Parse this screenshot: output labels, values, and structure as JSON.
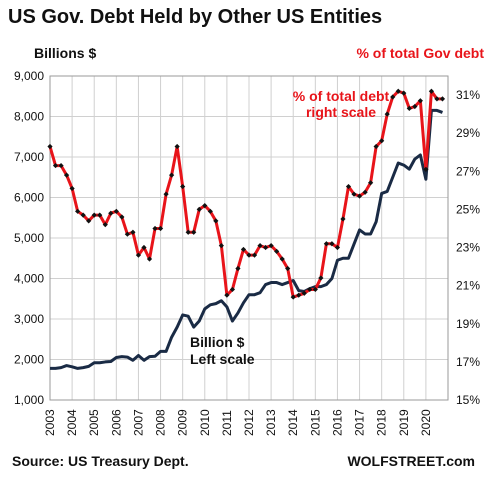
{
  "chart_data": {
    "type": "line",
    "title": "US Gov. Debt Held by Other US Entities",
    "ylabel_left": "Billions $",
    "ylabel_right": "% of total Gov debt",
    "ylim_left": [
      1000,
      9000
    ],
    "yticks_left": [
      "1,000",
      "2,000",
      "3,000",
      "4,000",
      "5,000",
      "6,000",
      "7,000",
      "8,000",
      "9,000"
    ],
    "ylim_right": [
      15,
      32
    ],
    "yticks_right": [
      "15%",
      "17%",
      "19%",
      "21%",
      "23%",
      "25%",
      "27%",
      "29%",
      "31%"
    ],
    "xlim": [
      2003.0,
      2021.0
    ],
    "xticks": [
      "2003",
      "2004",
      "2005",
      "2006",
      "2007",
      "2008",
      "2009",
      "2010",
      "2011",
      "2012",
      "2013",
      "2014",
      "2015",
      "2016",
      "2017",
      "2018",
      "2019",
      "2020"
    ],
    "grid": true,
    "annotations": {
      "pct_label": [
        "% of total debt",
        "right scale"
      ],
      "billion_label": [
        "Billion $",
        "Left scale"
      ]
    },
    "colors": {
      "billions": "#1a2b45",
      "percent": "#e8141a",
      "marker": "#111111",
      "grid": "#d0d0d0"
    },
    "series": [
      {
        "axis": "left",
        "x": [
          2003.0,
          2003.25,
          2003.5,
          2003.75,
          2004.0,
          2004.25,
          2004.5,
          2004.75,
          2005.0,
          2005.25,
          2005.5,
          2005.75,
          2006.0,
          2006.25,
          2006.5,
          2006.75,
          2007.0,
          2007.25,
          2007.5,
          2007.75,
          2008.0,
          2008.25,
          2008.5,
          2008.75,
          2009.0,
          2009.25,
          2009.5,
          2009.75,
          2010.0,
          2010.25,
          2010.5,
          2010.75,
          2011.0,
          2011.25,
          2011.5,
          2011.75,
          2012.0,
          2012.25,
          2012.5,
          2012.75,
          2013.0,
          2013.25,
          2013.5,
          2013.75,
          2014.0,
          2014.25,
          2014.5,
          2014.75,
          2015.0,
          2015.25,
          2015.5,
          2015.75,
          2016.0,
          2016.25,
          2016.5,
          2016.75,
          2017.0,
          2017.25,
          2017.5,
          2017.75,
          2018.0,
          2018.25,
          2018.5,
          2018.75,
          2019.0,
          2019.25,
          2019.5,
          2019.75,
          2020.0,
          2020.25,
          2020.5,
          2020.75
        ],
        "values": [
          1780,
          1780,
          1800,
          1850,
          1820,
          1780,
          1800,
          1830,
          1920,
          1920,
          1940,
          1950,
          2050,
          2070,
          2060,
          1980,
          2100,
          1980,
          2070,
          2080,
          2200,
          2200,
          2550,
          2800,
          3100,
          3070,
          2800,
          2950,
          3250,
          3350,
          3380,
          3450,
          3300,
          2950,
          3150,
          3400,
          3600,
          3600,
          3650,
          3850,
          3900,
          3900,
          3850,
          3900,
          3950,
          3700,
          3680,
          3750,
          3800,
          3800,
          3850,
          4000,
          4450,
          4500,
          4500,
          4850,
          5200,
          5100,
          5100,
          5400,
          6100,
          6150,
          6500,
          6850,
          6800,
          6700,
          6950,
          7050,
          6450,
          8150,
          8150,
          8100
        ]
      },
      {
        "axis": "right",
        "x": [
          2003.0,
          2003.25,
          2003.5,
          2003.75,
          2004.0,
          2004.25,
          2004.5,
          2004.75,
          2005.0,
          2005.25,
          2005.5,
          2005.75,
          2006.0,
          2006.25,
          2006.5,
          2006.75,
          2007.0,
          2007.25,
          2007.5,
          2007.75,
          2008.0,
          2008.25,
          2008.5,
          2008.75,
          2009.0,
          2009.25,
          2009.5,
          2009.75,
          2010.0,
          2010.25,
          2010.5,
          2010.75,
          2011.0,
          2011.25,
          2011.5,
          2011.75,
          2012.0,
          2012.25,
          2012.5,
          2012.75,
          2013.0,
          2013.25,
          2013.5,
          2013.75,
          2014.0,
          2014.25,
          2014.5,
          2014.75,
          2015.0,
          2015.25,
          2015.5,
          2015.75,
          2016.0,
          2016.25,
          2016.5,
          2016.75,
          2017.0,
          2017.25,
          2017.5,
          2017.75,
          2018.0,
          2018.25,
          2018.5,
          2018.75,
          2019.0,
          2019.25,
          2019.5,
          2019.75,
          2020.0,
          2020.25,
          2020.5,
          2020.75
        ],
        "values": [
          28.3,
          27.3,
          27.3,
          26.8,
          26.1,
          24.9,
          24.7,
          24.4,
          24.7,
          24.7,
          24.2,
          24.8,
          24.9,
          24.6,
          23.7,
          23.8,
          22.6,
          23.0,
          22.4,
          24.0,
          24.0,
          25.8,
          26.8,
          28.3,
          26.2,
          23.8,
          23.8,
          25.0,
          25.2,
          24.9,
          24.4,
          23.1,
          20.5,
          20.8,
          21.9,
          22.9,
          22.6,
          22.6,
          23.1,
          23.0,
          23.1,
          22.8,
          22.4,
          21.9,
          20.4,
          20.5,
          20.6,
          20.8,
          20.8,
          21.4,
          23.2,
          23.2,
          23.0,
          24.5,
          26.2,
          25.8,
          25.7,
          25.9,
          26.4,
          28.3,
          28.6,
          30.0,
          30.9,
          31.2,
          31.1,
          30.3,
          30.4,
          30.7,
          27.1,
          31.2,
          30.8,
          30.8
        ]
      }
    ]
  },
  "footer": {
    "source": "Source: US Treasury Dept.",
    "brand": "WOLFSTREET.com"
  }
}
